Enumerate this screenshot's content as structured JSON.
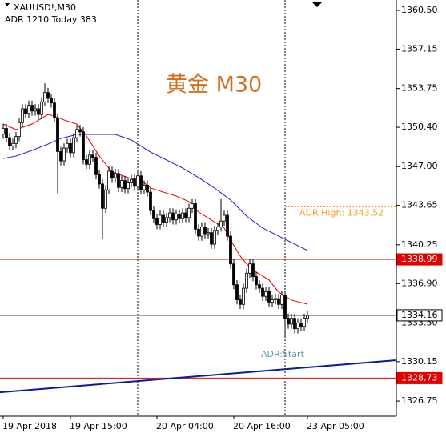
{
  "chart_data": {
    "type": "candlestick",
    "symbol_label": "XAUUSD!,M30",
    "info_label": "ADR 1210  Today 383",
    "title": "黄金 M30",
    "adr_start_label": "ADR:Start",
    "xlim": [
      -1,
      122.75
    ],
    "ylim": [
      1325.44,
      1361.4
    ],
    "yticks": [
      {
        "value": 1360.5,
        "label": "1360.50"
      },
      1357.15,
      1353.75,
      {
        "value": 1350.4,
        "label": "1350.40"
      },
      {
        "value": 1347.0,
        "label": "1347.00"
      },
      1343.65,
      1340.25,
      {
        "value": 1336.9,
        "label": "1336.90"
      },
      {
        "value": 1333.5,
        "label": "1333.50"
      },
      1330.15,
      1326.75
    ],
    "xticks": [
      {
        "value": 0,
        "label": "19 Apr 2018"
      },
      {
        "value": 21,
        "label": "19 Apr 15:00"
      },
      {
        "value": 48,
        "label": "20 Apr 04:00"
      },
      {
        "value": 72,
        "label": "20 Apr 16:00"
      },
      {
        "value": 95,
        "label": "23 Apr 05:00"
      }
    ],
    "candles": {
      "up_color": "#ffffff",
      "down_color": "#000000",
      "edge_color": "#000000",
      "open": [
        1349.8,
        1350.3,
        1349.5,
        1348.8,
        1349.0,
        1349.6,
        1350.8,
        1352.0,
        1351.6,
        1352.3,
        1351.8,
        1352.0,
        1351.5,
        1352.6,
        1353.4,
        1352.9,
        1352.5,
        1351.2,
        1348.3,
        1347.5,
        1348.6,
        1349.0,
        1348.2,
        1349.5,
        1350.2,
        1350.0,
        1347.6,
        1347.2,
        1348.0,
        1347.8,
        1346.3,
        1345.5,
        1343.4,
        1345.0,
        1346.6,
        1346.0,
        1346.4,
        1345.2,
        1345.8,
        1345.1,
        1345.6,
        1345.9,
        1345.3,
        1346.2,
        1345.0,
        1345.4,
        1344.8,
        1343.2,
        1342.5,
        1342.0,
        1342.8,
        1342.2,
        1342.6,
        1343.0,
        1342.4,
        1342.9,
        1342.5,
        1343.0,
        1342.6,
        1343.4,
        1343.8,
        1341.6,
        1341.0,
        1341.8,
        1341.2,
        1341.3,
        1340.3,
        1341.5,
        1341.8,
        1342.3,
        1342.8,
        1341.0,
        1338.6,
        1336.8,
        1335.5,
        1335.1,
        1336.5,
        1337.8,
        1338.6,
        1337.5,
        1336.8,
        1336.5,
        1335.8,
        1336.2,
        1335.3,
        1335.5,
        1335.6,
        1335.1,
        1335.9,
        1333.9,
        1333.4,
        1333.9,
        1333.0,
        1333.5,
        1333.2,
        1333.9
      ],
      "high": [
        1350.7,
        1350.7,
        1349.9,
        1349.4,
        1350.0,
        1351.2,
        1352.4,
        1352.4,
        1352.7,
        1352.7,
        1352.4,
        1352.4,
        1353.0,
        1354.2,
        1353.8,
        1353.3,
        1352.9,
        1351.6,
        1348.7,
        1349.0,
        1349.4,
        1349.4,
        1349.9,
        1350.6,
        1350.6,
        1350.4,
        1348.0,
        1348.4,
        1348.4,
        1348.2,
        1346.7,
        1345.9,
        1345.4,
        1347.0,
        1347.0,
        1346.8,
        1346.8,
        1346.2,
        1346.2,
        1346.0,
        1346.3,
        1346.3,
        1346.6,
        1346.6,
        1345.8,
        1345.8,
        1345.2,
        1343.6,
        1342.9,
        1343.2,
        1343.2,
        1343.0,
        1343.4,
        1343.4,
        1343.3,
        1343.3,
        1343.4,
        1343.4,
        1343.8,
        1344.2,
        1344.2,
        1342.0,
        1342.2,
        1342.2,
        1341.7,
        1341.7,
        1341.9,
        1342.2,
        1344.2,
        1343.2,
        1343.2,
        1341.4,
        1339.0,
        1337.2,
        1335.9,
        1336.9,
        1338.2,
        1339.0,
        1339.0,
        1337.9,
        1337.2,
        1336.9,
        1336.6,
        1336.6,
        1335.9,
        1336.0,
        1336.0,
        1336.3,
        1336.3,
        1334.3,
        1334.3,
        1334.3,
        1333.9,
        1333.9,
        1334.3,
        1334.5
      ],
      "low": [
        1349.4,
        1349.1,
        1348.4,
        1348.4,
        1348.6,
        1349.2,
        1350.4,
        1351.2,
        1351.2,
        1351.4,
        1351.4,
        1351.1,
        1351.1,
        1352.2,
        1352.5,
        1352.1,
        1350.8,
        1344.7,
        1347.1,
        1347.1,
        1348.2,
        1347.8,
        1347.8,
        1349.1,
        1349.6,
        1347.2,
        1346.8,
        1346.8,
        1347.4,
        1345.9,
        1345.1,
        1340.8,
        1343.0,
        1344.6,
        1345.6,
        1345.6,
        1344.8,
        1344.8,
        1344.7,
        1344.7,
        1345.2,
        1344.9,
        1344.9,
        1344.6,
        1344.6,
        1344.4,
        1342.8,
        1342.1,
        1341.6,
        1341.6,
        1341.8,
        1341.8,
        1342.2,
        1342.0,
        1342.0,
        1342.1,
        1342.1,
        1342.2,
        1342.2,
        1343.0,
        1341.2,
        1340.6,
        1340.6,
        1340.8,
        1340.8,
        1339.9,
        1339.9,
        1341.1,
        1341.4,
        1341.9,
        1340.6,
        1338.2,
        1336.4,
        1335.1,
        1334.7,
        1334.7,
        1336.1,
        1337.4,
        1337.1,
        1336.4,
        1336.1,
        1335.4,
        1335.4,
        1334.9,
        1334.9,
        1335.1,
        1334.7,
        1334.7,
        1332.3,
        1333.0,
        1333.0,
        1332.6,
        1332.6,
        1332.8,
        1332.8,
        1333.5
      ],
      "close": [
        1350.3,
        1349.5,
        1348.8,
        1349.0,
        1349.6,
        1350.8,
        1352.0,
        1351.6,
        1352.3,
        1351.8,
        1352.0,
        1351.5,
        1352.6,
        1353.4,
        1352.9,
        1352.5,
        1351.2,
        1348.3,
        1347.5,
        1348.6,
        1349.0,
        1348.2,
        1349.5,
        1350.2,
        1350.0,
        1347.6,
        1347.2,
        1348.0,
        1347.8,
        1346.3,
        1345.5,
        1343.4,
        1345.0,
        1346.6,
        1346.0,
        1346.4,
        1345.2,
        1345.8,
        1345.1,
        1345.6,
        1345.9,
        1345.3,
        1346.2,
        1345.0,
        1345.4,
        1344.8,
        1343.2,
        1342.5,
        1342.0,
        1342.8,
        1342.2,
        1342.6,
        1343.0,
        1342.4,
        1342.9,
        1342.5,
        1343.0,
        1342.6,
        1343.4,
        1343.8,
        1341.6,
        1341.0,
        1341.8,
        1341.2,
        1341.3,
        1340.3,
        1341.5,
        1341.8,
        1342.3,
        1342.8,
        1341.0,
        1338.6,
        1336.8,
        1335.5,
        1335.1,
        1336.5,
        1337.8,
        1338.6,
        1337.5,
        1336.8,
        1336.5,
        1335.8,
        1336.2,
        1335.3,
        1335.5,
        1335.6,
        1335.1,
        1335.9,
        1333.9,
        1333.4,
        1333.9,
        1333.0,
        1333.5,
        1333.2,
        1333.9,
        1334.16
      ]
    },
    "lines": [
      {
        "color": "#e00000",
        "x": [
          0,
          4,
          9,
          14,
          16,
          19,
          23,
          26,
          30,
          34,
          39,
          43,
          46,
          50,
          54,
          58,
          61,
          65,
          69,
          71,
          74,
          76,
          79,
          83,
          86,
          90,
          95
        ],
        "values": [
          1350.68,
          1350.2,
          1350.68,
          1351.51,
          1351.37,
          1351.03,
          1350.68,
          1349.64,
          1347.91,
          1346.53,
          1346.05,
          1345.84,
          1345.15,
          1344.8,
          1344.46,
          1343.98,
          1343.08,
          1342.39,
          1341.7,
          1340.66,
          1339.28,
          1338.59,
          1337.9,
          1337.21,
          1336.17,
          1335.47,
          1335.12
        ]
      },
      {
        "color": "#1a1ad0",
        "x": [
          0,
          4,
          9,
          14,
          18,
          23,
          29,
          35,
          40,
          46,
          51,
          56,
          61,
          66,
          71,
          76,
          81,
          86,
          91,
          95
        ],
        "values": [
          1347.71,
          1347.91,
          1348.4,
          1348.95,
          1349.43,
          1349.78,
          1349.78,
          1349.78,
          1349.3,
          1348.26,
          1347.57,
          1346.88,
          1346.05,
          1345.15,
          1344.12,
          1342.73,
          1341.7,
          1341.0,
          1340.31,
          1339.76
        ]
      },
      {
        "color": "#0a1aa0",
        "x": [
          -1,
          122.75
        ],
        "values": [
          1327.51,
          1330.28
        ]
      }
    ],
    "levels": [
      {
        "value": 1338.99,
        "color": "#e00000"
      },
      {
        "value": 1334.16,
        "color": "#000000"
      },
      {
        "value": 1328.73,
        "color": "#e00000"
      }
    ],
    "adr_high": {
      "value": 1343.52,
      "label": "ADR High: 1343.52",
      "x": 88,
      "color": "#f0a020"
    },
    "vlines": [
      42,
      88
    ]
  }
}
